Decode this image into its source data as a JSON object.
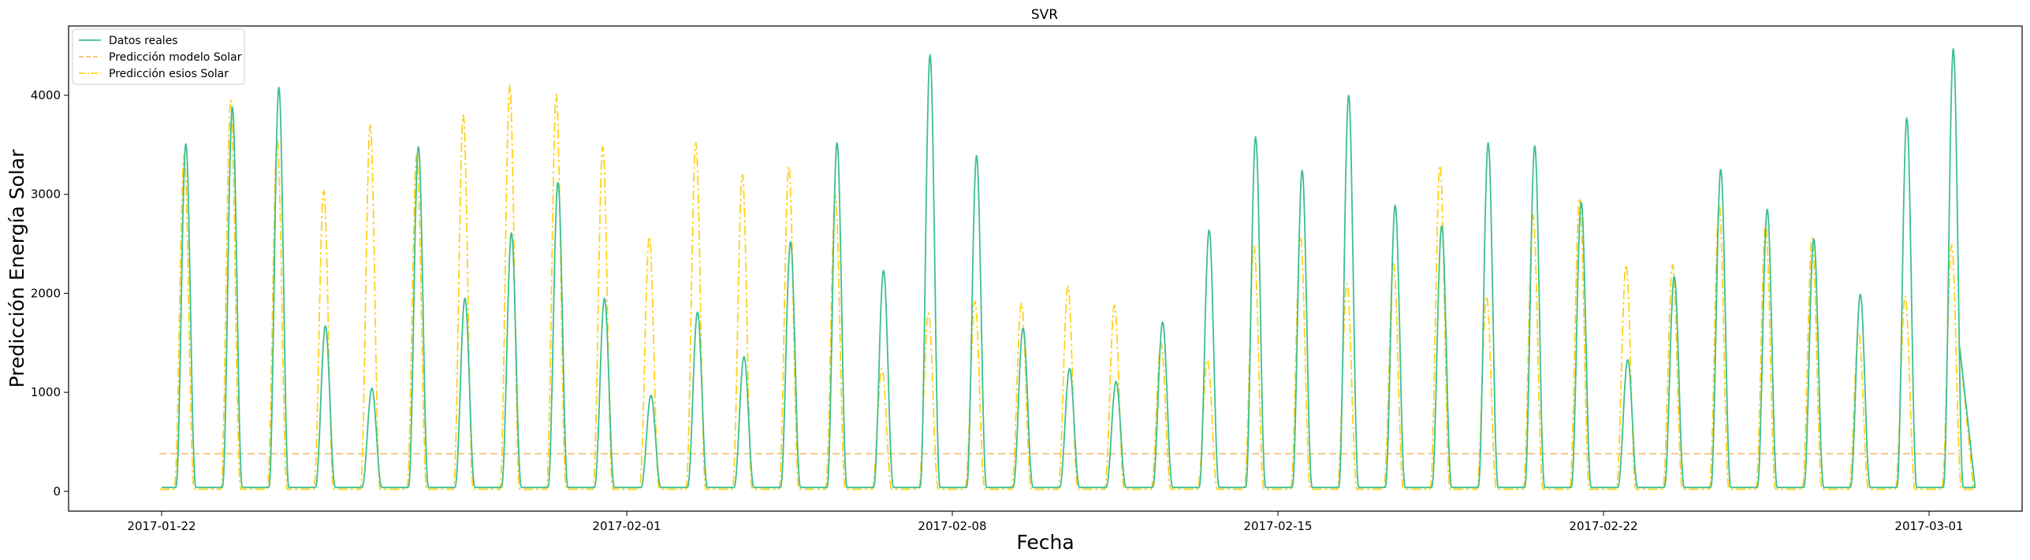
{
  "chart_data": {
    "type": "line",
    "title": "SVR",
    "xlabel": "Fecha",
    "ylabel": "Predicción Energía Solar",
    "x_range": [
      "2017-01-20",
      "2017-03-03"
    ],
    "ylim": [
      -200,
      4700
    ],
    "x_ticks": [
      "2017-01-22",
      "2017-02-01",
      "2017-02-08",
      "2017-02-15",
      "2017-02-22",
      "2017-03-01"
    ],
    "y_ticks": [
      0,
      1000,
      2000,
      3000,
      4000
    ],
    "legend_position": "top-left",
    "grid": false,
    "days": [
      "2017-01-22",
      "2017-01-23",
      "2017-01-24",
      "2017-01-25",
      "2017-01-26",
      "2017-01-27",
      "2017-01-28",
      "2017-01-29",
      "2017-01-30",
      "2017-01-31",
      "2017-02-01",
      "2017-02-02",
      "2017-02-03",
      "2017-02-04",
      "2017-02-05",
      "2017-02-06",
      "2017-02-07",
      "2017-02-08",
      "2017-02-09",
      "2017-02-10",
      "2017-02-11",
      "2017-02-12",
      "2017-02-13",
      "2017-02-14",
      "2017-02-15",
      "2017-02-16",
      "2017-02-17",
      "2017-02-18",
      "2017-02-19",
      "2017-02-20",
      "2017-02-21",
      "2017-02-22",
      "2017-02-23",
      "2017-02-24",
      "2017-02-25",
      "2017-02-26",
      "2017-02-27",
      "2017-02-28",
      "2017-03-01"
    ],
    "series": [
      {
        "name": "Datos reales",
        "color": "#3dbf8f",
        "style": "solid",
        "daily_peak": [
          3510,
          3880,
          4080,
          1670,
          1040,
          3480,
          1950,
          2610,
          3120,
          1950,
          970,
          1810,
          1360,
          2520,
          3520,
          2230,
          4410,
          3390,
          1650,
          1240,
          1110,
          1710,
          2640,
          3580,
          3240,
          4000,
          2890,
          2680,
          3520,
          3490,
          2920,
          1330,
          2170,
          3250,
          2850,
          2550,
          1990,
          3770,
          4470
        ],
        "night_level": 40
      },
      {
        "name": "Predicción modelo Solar",
        "color": "#f6c17a",
        "style": "dashed",
        "constant": 380
      },
      {
        "name": "Predicción esios Solar",
        "color": "#ffd21a",
        "style": "dashdot",
        "daily_peak": [
          3400,
          3950,
          3550,
          3040,
          3700,
          3400,
          3800,
          4100,
          4010,
          3480,
          2570,
          3520,
          3200,
          3280,
          2990,
          1240,
          1800,
          1920,
          1900,
          2070,
          1880,
          1500,
          1330,
          2480,
          2570,
          2100,
          2300,
          3290,
          1970,
          2790,
          2960,
          2290,
          2290,
          2900,
          2700,
          2560,
          1610,
          1970,
          2490
        ],
        "night_level": 20
      }
    ]
  }
}
